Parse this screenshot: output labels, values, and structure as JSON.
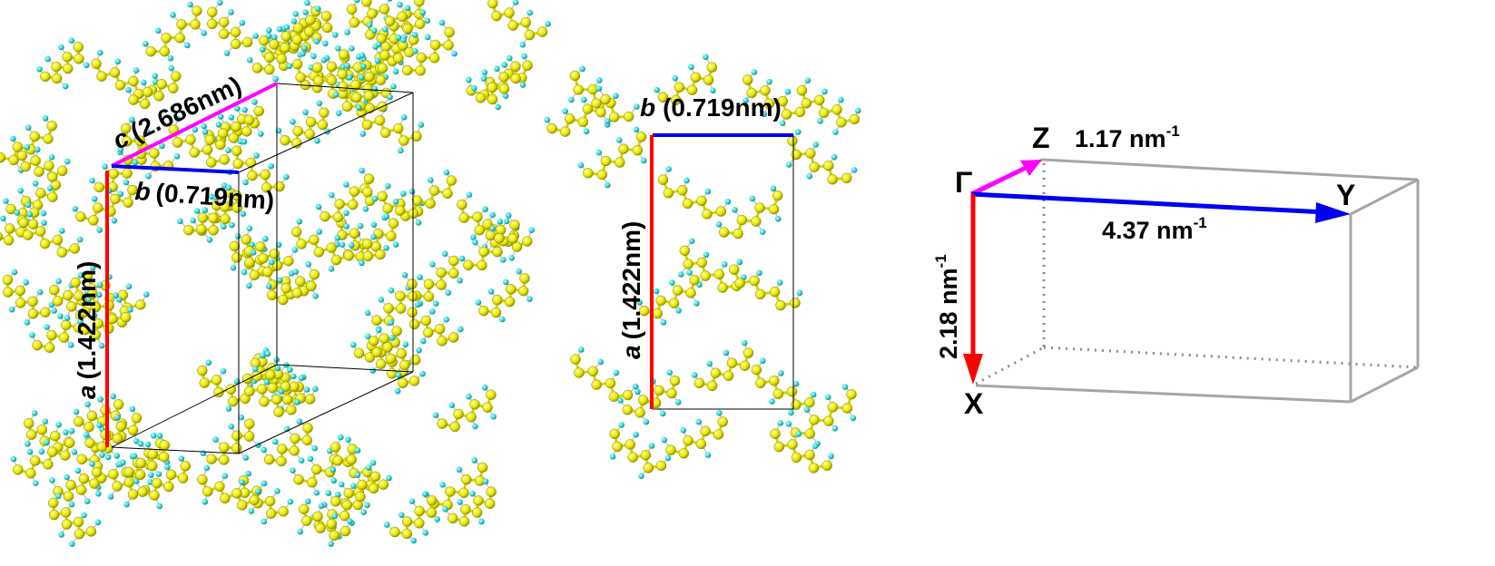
{
  "panel_left": {
    "label_c_var": "c",
    "label_c_val": "(2.686nm)",
    "label_b_var": "b",
    "label_b_val": "(0.719nm)",
    "label_a_var": "a",
    "label_a_val": "(1.422nm)"
  },
  "panel_mid": {
    "label_b_var": "b",
    "label_b_val": "(0.719nm)",
    "label_a_var": "a",
    "label_a_val": "(1.422nm)"
  },
  "panel_right": {
    "gamma": "Γ",
    "z_label": "Z",
    "y_label": "Y",
    "x_label": "X",
    "z_len_base": "1.17 nm",
    "z_len_exp": "-1",
    "y_len_base": "4.37 nm",
    "y_len_exp": "-1",
    "x_len_base": "2.18 nm",
    "x_len_exp": "-1"
  },
  "colors": {
    "atom_carbon": "#e6e600",
    "atom_hydrogen": "#2fd3d3",
    "axis_a": "#ff0000",
    "axis_b": "#0000ee",
    "axis_c": "#ff00ff",
    "box": "#a6a6a6"
  }
}
